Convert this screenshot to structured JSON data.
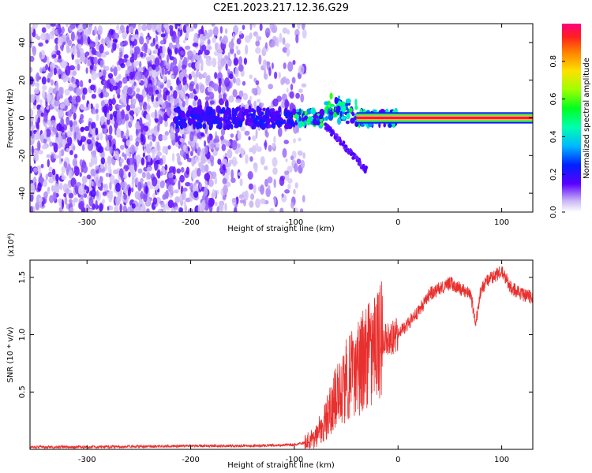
{
  "title": "C2E1.2023.217.12.36.G29",
  "colors": {
    "snr_line": "#e8302e",
    "carrier_band": "#e8302e"
  },
  "colorbar": {
    "label": "Normalized spectral amplitude",
    "range": [
      0.0,
      1.0
    ],
    "ticks": [
      "0.0",
      "0.2",
      "0.4",
      "0.6",
      "0.8"
    ],
    "tick_values": [
      0.0,
      0.2,
      0.4,
      0.6,
      0.8
    ]
  },
  "chart_data": [
    {
      "type": "heatmap",
      "xlabel": "Height of straight line (km)",
      "ylabel": "Frequency (Hz)",
      "xlim": [
        -355,
        130
      ],
      "ylim": [
        -50,
        50
      ],
      "xticks": [
        "-300",
        "-200",
        "-100",
        "0",
        "100"
      ],
      "xtick_values": [
        -300,
        -200,
        -100,
        0,
        100
      ],
      "yticks": [
        "-40",
        "-20",
        "0",
        "20",
        "40"
      ],
      "ytick_values": [
        -40,
        -20,
        0,
        20,
        40
      ],
      "colormap": "normalized spectral amplitude (0-1)",
      "features": {
        "broadband_noise_x_range": [
          -355,
          -90
        ],
        "signal_center_frequency_hz": 0,
        "diverging_branch": {
          "x": [
            -50,
            -30
          ],
          "freq_hz": [
            -12,
            -28
          ]
        },
        "steady_carrier_x_range": [
          -40,
          130
        ],
        "steady_carrier_amplitude": 1.0
      }
    },
    {
      "type": "line",
      "xlabel": "Height of straight line (km)",
      "ylabel": "SNR (10 * v/v)",
      "y_scale_label": "(x10⁴)",
      "xlim": [
        -355,
        130
      ],
      "ylim": [
        0,
        1.65
      ],
      "xticks": [
        "-300",
        "-200",
        "-100",
        "0",
        "100"
      ],
      "xtick_values": [
        -300,
        -200,
        -100,
        0,
        100
      ],
      "yticks": [
        "0.5",
        "1.0",
        "1.5"
      ],
      "ytick_values": [
        0.5,
        1.0,
        1.5
      ],
      "series": [
        {
          "x": [
            -355,
            -300,
            -250,
            -200,
            -150,
            -120,
            -100,
            -90,
            -80,
            -70,
            -60,
            -50,
            -40,
            -30,
            -20,
            -15,
            -10,
            0,
            10,
            20,
            30,
            40,
            50,
            60,
            70,
            75,
            80,
            90,
            100,
            110,
            120,
            130
          ],
          "y": [
            0.02,
            0.02,
            0.025,
            0.03,
            0.03,
            0.035,
            0.04,
            0.06,
            0.1,
            0.25,
            0.45,
            0.6,
            0.7,
            0.8,
            0.85,
            0.95,
            0.95,
            1.0,
            1.1,
            1.2,
            1.35,
            1.4,
            1.45,
            1.4,
            1.35,
            1.1,
            1.4,
            1.5,
            1.55,
            1.4,
            1.35,
            1.33
          ]
        }
      ]
    }
  ]
}
